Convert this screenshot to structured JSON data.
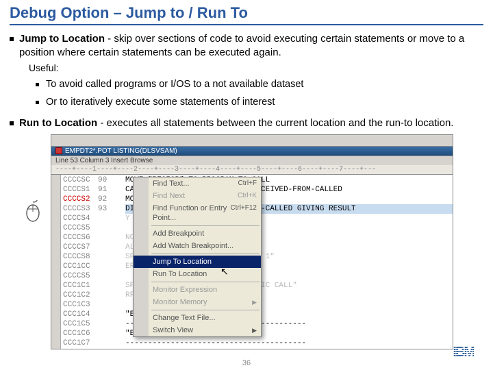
{
  "title": "Debug Option – Jump to / Run To",
  "jump": {
    "heading": "Jump to Location",
    "desc": " - skip over sections of code to avoid executing certain statements or move to a position where certain statements can be executed again.",
    "useful_label": "Useful:",
    "sub1": "To avoid called programs or I/OS to a not available dataset",
    "sub2": "Or to iteratively execute some statements of interest"
  },
  "run": {
    "heading": "Run to Location",
    "desc": " - executes all statements between the current location and the run-to location."
  },
  "win": {
    "title": "EMPDT2*.POT LISTING(DLSVSAM)",
    "toolbar": "Line 53    Column 3    Insert           Browse",
    "ruler": "----+----1----+----2----+----3----+----4----+----5----+----6----+----7----+---"
  },
  "code": {
    "lines": [
      "CCCCSC",
      "CCCCS1",
      "CCCCS2",
      "CCCCS3",
      "CCCCS4",
      "CCCCS5",
      "CCCCS6",
      "CCCCS7",
      "CCCCS8",
      "CCC1CC",
      "CCCCS5",
      "CCC1C1",
      "CCC1C2",
      "CCC1C3",
      "CCC1C4",
      "CCC1C5",
      "CCC1C6",
      "CCC1C7"
    ],
    "nums": [
      "90",
      "91",
      "92",
      "93",
      "",
      "",
      "",
      "",
      "",
      "",
      "",
      "",
      "",
      "",
      "",
      "",
      "",
      ""
    ],
    "src": [
      "MOVE \"REGIOB\" TO PROGRAM-TO-CALL",
      "CALL  PROGRAM-TO-CALL USING RECEIVED-FROM-CALLED",
      "MOVE  66 TO VALUE1",
      "DIVIDE VALUE1 BY RECEIVED-FROM-CALLED GIVING RESULT",
      "Y \"The result is ... \" RESULT",
      "",
      "NCHFLAG > 1",
      "ALL  REGIOC  USING Input-name",
      "SPLAY \"BRANCHFLAG GREATER THAN 1\"",
      "ERFORM 0300-SEEYA",
      "",
      "SPLAY \"BRANCHFLAG <= 1 no STATIC CALL\"",
      "RFORM 0400-GCCDBYE.",
      "",
      "\"EXECUTED SEEYA PARAGRAPH\".",
      "----------------------------------------",
      "\"EXECUTED GCCDBYE PARAGRAPH\".",
      "----------------------------------------"
    ]
  },
  "menu": {
    "items": [
      {
        "label": "Find Text...",
        "accel": "Ctrl+F",
        "dis": false
      },
      {
        "label": "Find Next",
        "accel": "Ctrl+K",
        "dis": true
      },
      {
        "label": "Find Function or Entry Point...",
        "accel": "Ctrl+F12",
        "dis": false
      },
      {
        "sep": true
      },
      {
        "label": "Add Breakpoint",
        "dis": false
      },
      {
        "label": "Add Watch Breakpoint...",
        "dis": false
      },
      {
        "sep": true
      },
      {
        "label": "Jump To Location",
        "hl": true
      },
      {
        "label": "Run To Location",
        "dis": false
      },
      {
        "sep": true
      },
      {
        "label": "Monitor Expression",
        "dis": true
      },
      {
        "label": "Monitor Memory",
        "arrow": true,
        "dis": true
      },
      {
        "sep": true
      },
      {
        "label": "Change Text File...",
        "dis": false
      },
      {
        "label": "Switch View",
        "arrow": true,
        "dis": false
      }
    ]
  },
  "footer": {
    "slidenum": "36",
    "logo": "IBM"
  },
  "colors": {
    "title": "#2c5aa0",
    "menu_hl": "#0a246a",
    "win_bar": "#3a6ea5"
  }
}
